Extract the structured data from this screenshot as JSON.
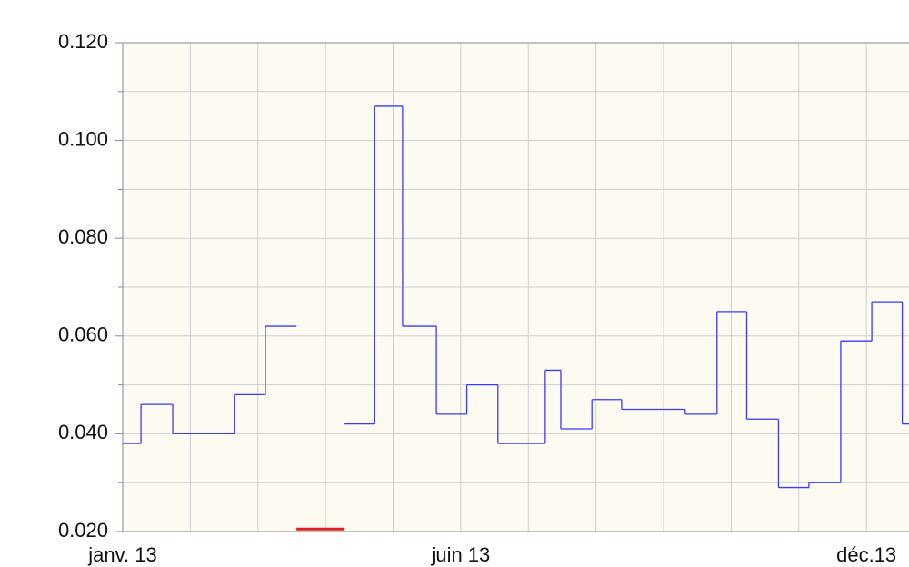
{
  "chart_data": {
    "type": "step",
    "x": [
      0,
      0.27,
      0.74,
      1.65,
      2.11,
      2.57,
      3.27,
      3.72,
      4.14,
      4.64,
      5.09,
      5.55,
      6.25,
      6.48,
      6.94,
      7.38,
      8.32,
      8.79,
      9.23,
      9.7,
      10.15,
      10.62,
      11.08,
      11.53
    ],
    "series": [
      {
        "color": "#3a3aff",
        "values": [
          0.038,
          0.046,
          0.04,
          0.048,
          0.062,
          null,
          0.042,
          0.107,
          0.062,
          0.044,
          0.05,
          0.038,
          0.053,
          0.041,
          0.047,
          0.045,
          0.044,
          0.065,
          0.043,
          0.029,
          0.03,
          0.059,
          0.067,
          0.042
        ]
      },
      {
        "color": "#e02020",
        "values": [
          null,
          null,
          null,
          null,
          null,
          0.0205,
          null,
          null,
          null,
          null,
          null,
          null,
          null,
          null,
          null,
          null,
          null,
          null,
          null,
          null,
          null,
          null,
          null,
          null
        ]
      }
    ],
    "xlim": [
      0,
      11.63
    ],
    "xticks": [
      {
        "value": 0,
        "label": "janv. 13"
      },
      {
        "value": 5,
        "label": "juin 13"
      },
      {
        "value": 11,
        "label": "déc.13"
      }
    ],
    "x_minor_ticks": [
      1,
      2,
      3,
      4,
      6,
      7,
      8,
      9,
      10
    ],
    "ylim": [
      0.02,
      0.12
    ],
    "yticks": [
      {
        "value": 0.02,
        "label": "0.020"
      },
      {
        "value": 0.04,
        "label": "0.040"
      },
      {
        "value": 0.06,
        "label": "0.060"
      },
      {
        "value": 0.08,
        "label": "0.080"
      },
      {
        "value": 0.1,
        "label": "0.100"
      },
      {
        "value": 0.12,
        "label": "0.120"
      }
    ],
    "y_minor_ticks": [
      0.03,
      0.05,
      0.07,
      0.09,
      0.11
    ],
    "grid": true
  }
}
